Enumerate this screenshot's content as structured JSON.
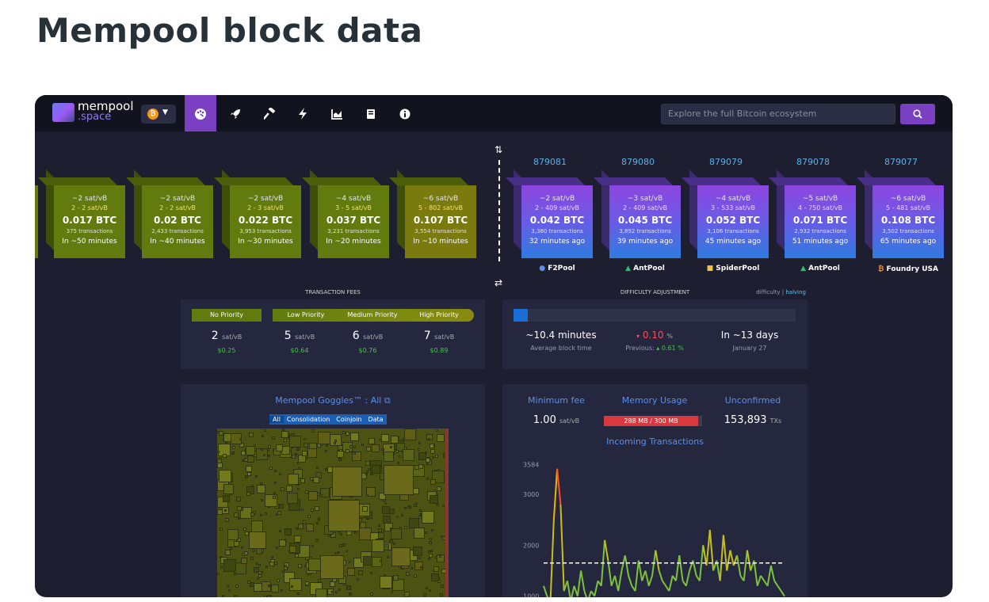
{
  "page": {
    "title": "Mempool block data"
  },
  "nav": {
    "logo_line1": "mempool",
    "logo_line2": ".space",
    "network_symbol": "₿",
    "icons": [
      "dashboard-icon",
      "rocket-icon",
      "hammer-icon",
      "lightning-icon",
      "chart-icon",
      "book-icon",
      "info-icon"
    ],
    "search_placeholder": "Explore the full Bitcoin ecosystem",
    "accent": "#7b3fc1"
  },
  "pending_blocks": [
    {
      "fee": "~2 sat/vB",
      "range": "2 - 2 sat/vB",
      "btc": "0.017 BTC",
      "tx": "375 transactions",
      "eta": "In ~50 minutes"
    },
    {
      "fee": "~2 sat/vB",
      "range": "2 - 2 sat/vB",
      "btc": "0.02 BTC",
      "tx": "2,433 transactions",
      "eta": "In ~40 minutes"
    },
    {
      "fee": "~2 sat/vB",
      "range": "2 - 3 sat/vB",
      "btc": "0.022 BTC",
      "tx": "3,953 transactions",
      "eta": "In ~30 minutes"
    },
    {
      "fee": "~4 sat/vB",
      "range": "3 - 5 sat/vB",
      "btc": "0.037 BTC",
      "tx": "3,231 transactions",
      "eta": "In ~20 minutes"
    },
    {
      "fee": "~6 sat/vB",
      "range": "5 - 802 sat/vB",
      "btc": "0.107 BTC",
      "tx": "3,554 transactions",
      "eta": "In ~10 minutes"
    }
  ],
  "mined_blocks": [
    {
      "height": "879081",
      "fee": "~2 sat/vB",
      "range": "2 - 409 sat/vB",
      "btc": "0.042 BTC",
      "tx": "3,380 transactions",
      "age": "32 minutes ago",
      "pool": "F2Pool"
    },
    {
      "height": "879080",
      "fee": "~3 sat/vB",
      "range": "2 - 409 sat/vB",
      "btc": "0.045 BTC",
      "tx": "3,892 transactions",
      "age": "39 minutes ago",
      "pool": "AntPool"
    },
    {
      "height": "879079",
      "fee": "~4 sat/vB",
      "range": "3 - 533 sat/vB",
      "btc": "0.052 BTC",
      "tx": "3,106 transactions",
      "age": "45 minutes ago",
      "pool": "SpiderPool"
    },
    {
      "height": "879078",
      "fee": "~5 sat/vB",
      "range": "4 - 750 sat/vB",
      "btc": "0.071 BTC",
      "tx": "2,932 transactions",
      "age": "51 minutes ago",
      "pool": "AntPool"
    },
    {
      "height": "879077",
      "fee": "~6 sat/vB",
      "range": "5 - 481 sat/vB",
      "btc": "0.108 BTC",
      "tx": "3,502 transactions",
      "age": "65 minutes ago",
      "pool": "Foundry USA"
    }
  ],
  "fees": {
    "title": "TRANSACTION FEES",
    "labels": [
      "No Priority",
      "Low Priority",
      "Medium Priority",
      "High Priority"
    ],
    "values": [
      "2",
      "5",
      "6",
      "7"
    ],
    "unit": "sat/vB",
    "usd": [
      "$0.25",
      "$0.64",
      "$0.76",
      "$0.89"
    ]
  },
  "difficulty": {
    "title": "DIFFICULTY ADJUSTMENT",
    "tab_difficulty": "difficulty",
    "tab_sep": "|",
    "tab_halving": "halving",
    "progress": 0.05,
    "avg_time": "~10.4 minutes",
    "avg_label": "Average block time",
    "change": "0.10",
    "change_unit": "%",
    "change_arrow": "▾",
    "previous_label": "Previous:",
    "previous_arrow": "▴",
    "previous": "0.61",
    "previous_unit": "%",
    "eta": "In ~13 days",
    "eta_date": "January 27"
  },
  "goggles": {
    "title": "Mempool Goggles™ : All",
    "link_icon": "⧉",
    "tabs": [
      "All",
      "Consolidation",
      "Coinjoin",
      "Data"
    ]
  },
  "stats": {
    "min_fee_label": "Minimum fee",
    "min_fee_value": "1.00",
    "min_fee_unit": "sat/vB",
    "memory_label": "Memory Usage",
    "memory_value": "288 MB / 300 MB",
    "memory_fraction": 0.96,
    "unconfirmed_label": "Unconfirmed",
    "unconfirmed_value": "153,893",
    "unconfirmed_unit": "TXs",
    "incoming_title": "Incoming Transactions"
  },
  "chart_data": {
    "type": "line",
    "title": "Incoming Transactions",
    "y_ticks": [
      3584,
      3000,
      2000,
      1000
    ],
    "ylim": [
      900,
      3700
    ],
    "threshold": 1650,
    "values": [
      1200,
      1000,
      900,
      2500,
      3500,
      2800,
      1100,
      1300,
      900,
      1200,
      1000,
      1500,
      1100,
      900,
      1100,
      1000,
      1300,
      1200,
      2100,
      1700,
      1200,
      1400,
      1100,
      1500,
      1800,
      1400,
      1200,
      1100,
      1700,
      1300,
      1500,
      1200,
      1400,
      1900,
      1500,
      1300,
      1200,
      1100,
      1400,
      1300,
      1800,
      1300,
      1200,
      1500,
      1700,
      1400,
      1300,
      2000,
      1600,
      2300,
      1500,
      1700,
      1300,
      2200,
      1500,
      1900,
      1600,
      1800,
      1400,
      1300,
      1900,
      1500,
      1700,
      1200,
      1400,
      1300,
      1200,
      1600,
      1300,
      1200,
      1100,
      1000
    ]
  }
}
